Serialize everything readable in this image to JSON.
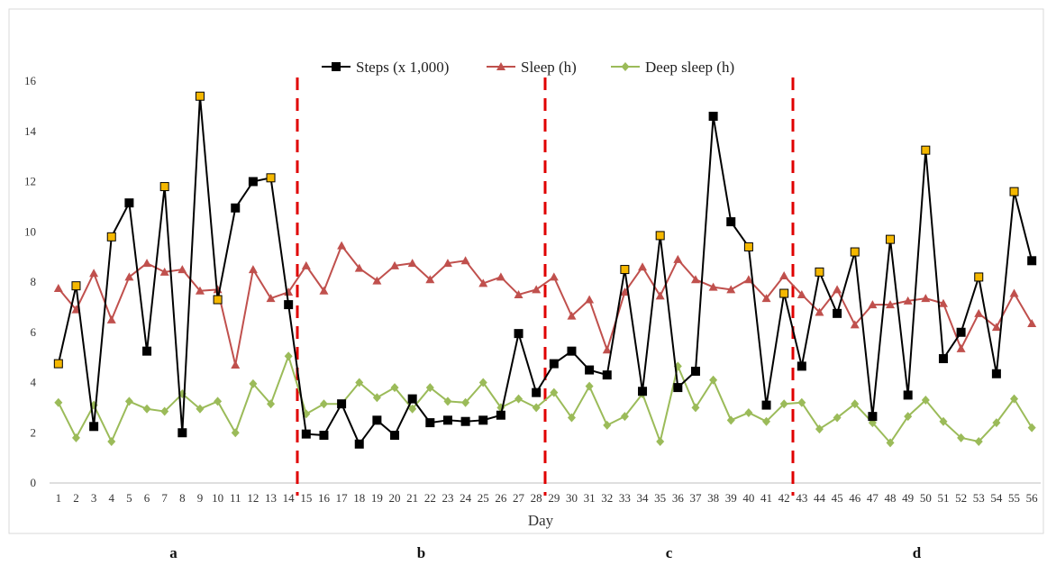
{
  "chart_data": {
    "type": "line",
    "title": "",
    "xlabel": "Day",
    "ylabel": "",
    "ylim": [
      0,
      16
    ],
    "yticks": [
      0,
      2,
      4,
      6,
      8,
      10,
      12,
      14,
      16
    ],
    "grid": false,
    "legend_position": "top-center",
    "x": [
      1,
      2,
      3,
      4,
      5,
      6,
      7,
      8,
      9,
      10,
      11,
      12,
      13,
      14,
      15,
      16,
      17,
      18,
      19,
      20,
      21,
      22,
      23,
      24,
      25,
      26,
      27,
      28,
      29,
      30,
      31,
      32,
      33,
      34,
      35,
      36,
      37,
      38,
      39,
      40,
      41,
      42,
      43,
      44,
      45,
      46,
      47,
      48,
      49,
      50,
      51,
      52,
      53,
      54,
      55,
      56
    ],
    "series": [
      {
        "name": "Steps (x 1,000)",
        "color": "#000000",
        "marker": "square",
        "highlight_color": "#f5b800",
        "highlight_days": [
          1,
          2,
          4,
          7,
          9,
          10,
          13,
          33,
          35,
          40,
          42,
          44,
          46,
          48,
          50,
          53,
          55
        ],
        "values": [
          4.75,
          7.85,
          2.25,
          9.8,
          11.15,
          5.25,
          11.8,
          2.0,
          15.4,
          7.3,
          10.95,
          12.0,
          12.15,
          7.1,
          1.95,
          1.9,
          3.15,
          1.55,
          2.5,
          1.9,
          3.35,
          2.4,
          2.5,
          2.45,
          2.5,
          2.7,
          5.95,
          3.6,
          4.75,
          5.25,
          4.5,
          4.3,
          8.5,
          3.65,
          9.85,
          3.8,
          4.45,
          14.6,
          10.4,
          9.4,
          3.1,
          7.55,
          4.65,
          8.4,
          6.75,
          9.2,
          2.65,
          9.7,
          3.5,
          13.25,
          4.95,
          6.0,
          8.2,
          4.35,
          11.6,
          8.85
        ]
      },
      {
        "name": "Sleep (h)",
        "color": "#c0504d",
        "marker": "triangle",
        "values": [
          7.75,
          6.9,
          8.35,
          6.5,
          8.2,
          8.75,
          8.4,
          8.5,
          7.65,
          7.7,
          4.7,
          8.5,
          7.35,
          7.6,
          8.65,
          7.65,
          9.45,
          8.55,
          8.05,
          8.65,
          8.75,
          8.1,
          8.75,
          8.85,
          7.95,
          8.2,
          7.5,
          7.7,
          8.2,
          6.65,
          7.3,
          5.3,
          7.6,
          8.6,
          7.45,
          8.9,
          8.1,
          7.8,
          7.7,
          8.1,
          7.35,
          8.25,
          7.5,
          6.8,
          7.7,
          6.3,
          7.1,
          7.1,
          7.25,
          7.35,
          7.15,
          5.35,
          6.75,
          6.2,
          7.55,
          6.35
        ]
      },
      {
        "name": "Deep sleep (h)",
        "color": "#9bbb59",
        "marker": "diamond",
        "values": [
          3.2,
          1.8,
          3.1,
          1.65,
          3.25,
          2.95,
          2.85,
          3.55,
          2.95,
          3.25,
          2.0,
          3.95,
          3.15,
          5.05,
          2.75,
          3.15,
          3.15,
          4.0,
          3.4,
          3.8,
          2.95,
          3.8,
          3.25,
          3.2,
          4.0,
          3.0,
          3.35,
          3.0,
          3.6,
          2.6,
          3.85,
          2.3,
          2.65,
          3.55,
          1.65,
          4.65,
          3.0,
          4.1,
          2.5,
          2.8,
          2.45,
          3.15,
          3.2,
          2.15,
          2.6,
          3.15,
          2.4,
          1.6,
          2.65,
          3.3,
          2.45,
          1.8,
          1.65,
          2.4,
          3.35,
          2.2
        ]
      }
    ],
    "phase_boundaries_day": [
      14,
      28,
      42
    ],
    "phase_boundary_color": "#e00000",
    "phases": [
      {
        "label": "a",
        "start_day": 1,
        "end_day": 14
      },
      {
        "label": "b",
        "start_day": 15,
        "end_day": 28
      },
      {
        "label": "c",
        "start_day": 29,
        "end_day": 42
      },
      {
        "label": "d",
        "start_day": 43,
        "end_day": 56
      }
    ]
  }
}
